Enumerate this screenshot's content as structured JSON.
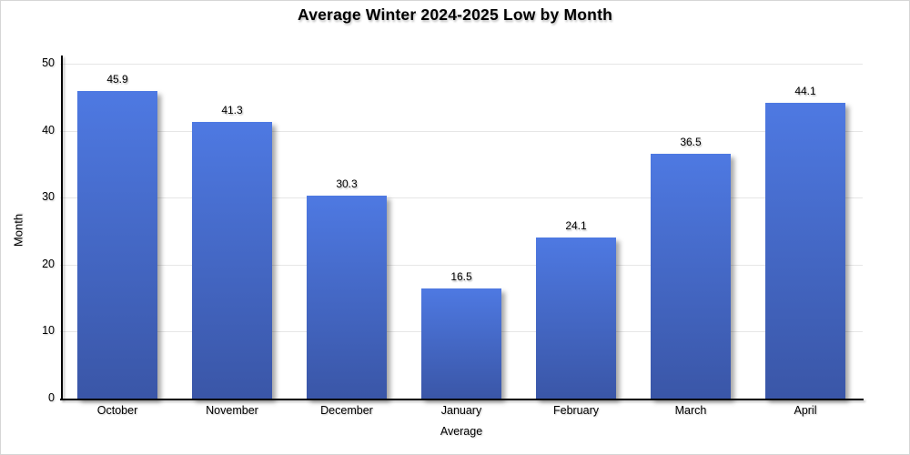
{
  "page": {
    "background": "#ffffff",
    "frame_border_color": "#d6d6d6"
  },
  "chart_data": {
    "type": "bar",
    "title": "Average Winter 2024-2025 Low by Month",
    "xlabel": "Average",
    "ylabel": "Month",
    "categories": [
      "October",
      "November",
      "December",
      "January",
      "February",
      "March",
      "April"
    ],
    "values": [
      45.9,
      41.3,
      30.3,
      16.5,
      24.1,
      36.5,
      44.1
    ],
    "value_labels": [
      "45.9",
      "41.3",
      "30.3",
      "16.5",
      "24.1",
      "36.5",
      "44.1"
    ],
    "ylim": [
      0,
      50
    ],
    "yticks": [
      0,
      10,
      20,
      30,
      40,
      50
    ],
    "grid": true,
    "legend": "none",
    "colors": {
      "bar_gradient_top": "#4e79e2",
      "bar_gradient_bottom": "#3a56a7",
      "gridline": "#e6e6e6",
      "axis_line": "#000000",
      "text": "#000000"
    }
  }
}
